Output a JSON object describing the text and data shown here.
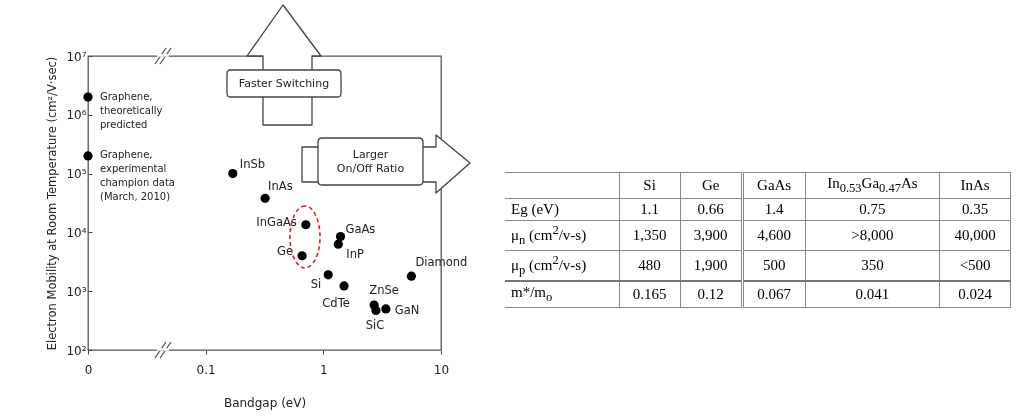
{
  "chart_data": [
    {
      "type": "scatter",
      "xlabel": "Bandgap (eV)",
      "ylabel": "Electron Mobility at Room Temperature (cm²/V·sec)",
      "log": "xy",
      "marker": "circle",
      "xlim": [
        0.01,
        10
      ],
      "xticks": [
        {
          "value": 0.01,
          "label": "0"
        },
        0.1,
        1,
        10
      ],
      "ylim": [
        100,
        10000000
      ],
      "yticks": [
        {
          "value": 100,
          "label": "10²"
        },
        {
          "value": 1000,
          "label": "10³"
        },
        {
          "value": 10000,
          "label": "10⁴"
        },
        {
          "value": 100000,
          "label": "10⁵"
        },
        {
          "value": 1000000,
          "label": "10⁶"
        },
        {
          "value": 10000000,
          "label": "10⁷"
        }
      ],
      "annotations": [
        "Faster Switching",
        "Larger\nOn/Off Ratio"
      ],
      "series": [
        {
          "name": "Graphene,\ntheoretically\npredicted",
          "color": "#000000",
          "x": [
            0.01
          ],
          "values": [
            2000000
          ]
        },
        {
          "name": "Graphene,\nexperimental\nchampion data\n(March, 2010)",
          "color": "#000000",
          "x": [
            0.01
          ],
          "values": [
            200000
          ]
        },
        {
          "name": "InSb",
          "color": "#000000",
          "x": [
            0.17
          ],
          "values": [
            100000
          ]
        },
        {
          "name": "InAs",
          "color": "#000000",
          "x": [
            0.32
          ],
          "values": [
            38000
          ]
        },
        {
          "name": "InGaAs",
          "color": "#000000",
          "x": [
            0.71
          ],
          "values": [
            13500
          ]
        },
        {
          "name": "Ge",
          "color": "#000000",
          "x": [
            0.66
          ],
          "values": [
            4000
          ]
        },
        {
          "name": "GaAs",
          "color": "#000000",
          "x": [
            1.4
          ],
          "values": [
            8500
          ]
        },
        {
          "name": "InP",
          "color": "#000000",
          "x": [
            1.34
          ],
          "values": [
            6300
          ]
        },
        {
          "name": "Si",
          "color": "#000000",
          "x": [
            1.1
          ],
          "values": [
            1900
          ]
        },
        {
          "name": "CdTe",
          "color": "#000000",
          "x": [
            1.5
          ],
          "values": [
            1230
          ]
        },
        {
          "name": "ZnSe",
          "color": "#000000",
          "x": [
            2.7
          ],
          "values": [
            580
          ]
        },
        {
          "name": "SiC",
          "color": "#000000",
          "x": [
            2.8
          ],
          "values": [
            470
          ]
        },
        {
          "name": "GaN",
          "color": "#000000",
          "x": [
            3.4
          ],
          "values": [
            500
          ]
        },
        {
          "name": "Diamond",
          "color": "#000000",
          "x": [
            5.6
          ],
          "values": [
            1800
          ]
        }
      ]
    },
    {
      "type": "other",
      "categories": [
        "Si",
        "Ge",
        "GaAs",
        "In$_{0.53}$Ga$_{0.47}$As",
        "InAs"
      ],
      "y_categories": [
        "Eg (eV)",
        "μ$_{n}$ (cm$^{2}$/v-s)",
        "μ$_{p}$ (cm$^{2}$/v-s)",
        "m*/m$_{o}$"
      ],
      "cell_labels": [
        [
          "1.1",
          "0.66",
          "1.4",
          "0.75",
          "0.35"
        ],
        [
          "1,350",
          "3,900",
          "4,600",
          ">8,000",
          "40,000"
        ],
        [
          "480",
          "1,900",
          "500",
          "350",
          "<500"
        ],
        [
          "0.165",
          "0.12",
          "0.067",
          "0.041",
          "0.024"
        ]
      ]
    }
  ]
}
